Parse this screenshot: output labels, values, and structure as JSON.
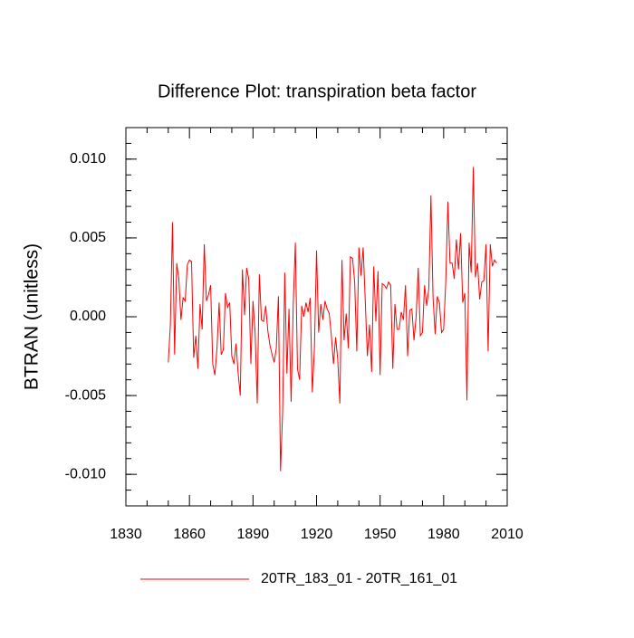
{
  "chart_data": {
    "type": "line",
    "title": "Difference Plot: transpiration beta factor",
    "y_label": "BTRAN  (unitless)",
    "xlim": [
      1830,
      2010
    ],
    "xticks": [
      1830,
      1860,
      1890,
      1920,
      1950,
      1980,
      2010
    ],
    "ylim": [
      -0.012,
      0.012
    ],
    "yticks": [
      {
        "value": -0.01,
        "label": "-0.010"
      },
      {
        "value": -0.005,
        "label": "-0.005"
      },
      {
        "value": 0,
        "label": "0.000"
      },
      {
        "value": 0.005,
        "label": "0.005"
      },
      {
        "value": 0.01,
        "label": "0.010"
      }
    ],
    "grid": false,
    "legend": "bottom",
    "x": [
      1850,
      1851,
      1852,
      1853,
      1854,
      1855,
      1856,
      1857,
      1858,
      1859,
      1860,
      1861,
      1862,
      1863,
      1864,
      1865,
      1866,
      1867,
      1868,
      1869,
      1870,
      1871,
      1872,
      1873,
      1874,
      1875,
      1876,
      1877,
      1878,
      1879,
      1880,
      1881,
      1882,
      1883,
      1884,
      1885,
      1886,
      1887,
      1888,
      1889,
      1890,
      1891,
      1892,
      1893,
      1894,
      1895,
      1896,
      1897,
      1898,
      1899,
      1900,
      1901,
      1902,
      1903,
      1904,
      1905,
      1906,
      1907,
      1908,
      1909,
      1910,
      1911,
      1912,
      1913,
      1914,
      1915,
      1916,
      1917,
      1918,
      1919,
      1920,
      1921,
      1922,
      1923,
      1924,
      1925,
      1926,
      1927,
      1928,
      1929,
      1930,
      1931,
      1932,
      1933,
      1934,
      1935,
      1936,
      1937,
      1938,
      1939,
      1940,
      1941,
      1942,
      1943,
      1944,
      1945,
      1946,
      1947,
      1948,
      1949,
      1950,
      1951,
      1952,
      1953,
      1954,
      1955,
      1956,
      1957,
      1958,
      1959,
      1960,
      1961,
      1962,
      1963,
      1964,
      1965,
      1966,
      1967,
      1968,
      1969,
      1970,
      1971,
      1972,
      1973,
      1974,
      1975,
      1976,
      1977,
      1978,
      1979,
      1980,
      1981,
      1982,
      1983,
      1984,
      1985,
      1986,
      1987,
      1988,
      1989,
      1990,
      1991,
      1992,
      1993,
      1994,
      1995,
      1996,
      1997,
      1998,
      1999,
      2000,
      2001,
      2002,
      2003,
      2004,
      2005
    ],
    "series": [
      {
        "name": "20TR_183_01 - 20TR_161_01",
        "color": "#ff0000",
        "values": [
          -0.0029,
          -0.0005,
          0.006,
          -0.0024,
          0.0034,
          0.0024,
          -0.0002,
          0.0012,
          0.001,
          0.0033,
          0.0036,
          0.0035,
          -0.0026,
          -0.0012,
          -0.0033,
          0.0008,
          -0.0008,
          0.0046,
          0.001,
          0.0014,
          0.002,
          -0.003,
          -0.0037,
          -0.002,
          0.0009,
          -0.0024,
          -0.0021,
          0.0015,
          0.0006,
          0.0009,
          -0.0025,
          -0.003,
          -0.0017,
          -0.0036,
          -0.005,
          0.003,
          0.0001,
          0.0031,
          0.0024,
          -0.003,
          0.001,
          -0.001,
          -0.0055,
          0.0027,
          -0.0002,
          -0.0003,
          0.0007,
          -0.0009,
          -0.0018,
          -0.0024,
          -0.0029,
          -0.002,
          0.0013,
          -0.0098,
          -0.006,
          0.0028,
          -0.0036,
          0.0005,
          -0.0054,
          0.0008,
          0.0047,
          -0.0033,
          -0.004,
          0.0007,
          0.0,
          0.0009,
          0.0003,
          0.0012,
          -0.0048,
          -0.002,
          0.0042,
          -0.001,
          0.0008,
          -0.0002,
          0.001,
          0.0005,
          0.0002,
          -0.0012,
          -0.003,
          -0.0013,
          -0.0027,
          -0.0055,
          0.0036,
          -0.0015,
          0.0002,
          -0.002,
          0.0038,
          0.0037,
          0.0022,
          -0.0022,
          0.0044,
          0.0026,
          0.0044,
          0.001,
          -0.0025,
          -0.0005,
          -0.0035,
          0.0032,
          -0.0003,
          0.0029,
          -0.0037,
          0.0021,
          0.002,
          0.0018,
          0.0022,
          0.002,
          -0.0033,
          0.0008,
          -0.0008,
          -0.0008,
          0.0003,
          -0.0002,
          0.002,
          -0.0025,
          0.0004,
          0.0005,
          -0.0015,
          0.0,
          0.0031,
          -0.0012,
          -0.001,
          0.002,
          0.0007,
          0.0018,
          0.0077,
          0.0012,
          -0.0011,
          0.0013,
          0.0009,
          -0.001,
          -0.0008,
          0.0022,
          0.0073,
          0.0034,
          0.0034,
          0.0024,
          0.0049,
          0.003,
          0.0053,
          0.0009,
          0.0015,
          -0.0053,
          0.0047,
          0.0028,
          0.0095,
          0.0025,
          0.0034,
          0.0011,
          0.0022,
          0.0023,
          0.0046,
          -0.0022,
          0.0046,
          0.0032,
          0.0036,
          0.0034
        ]
      }
    ]
  }
}
